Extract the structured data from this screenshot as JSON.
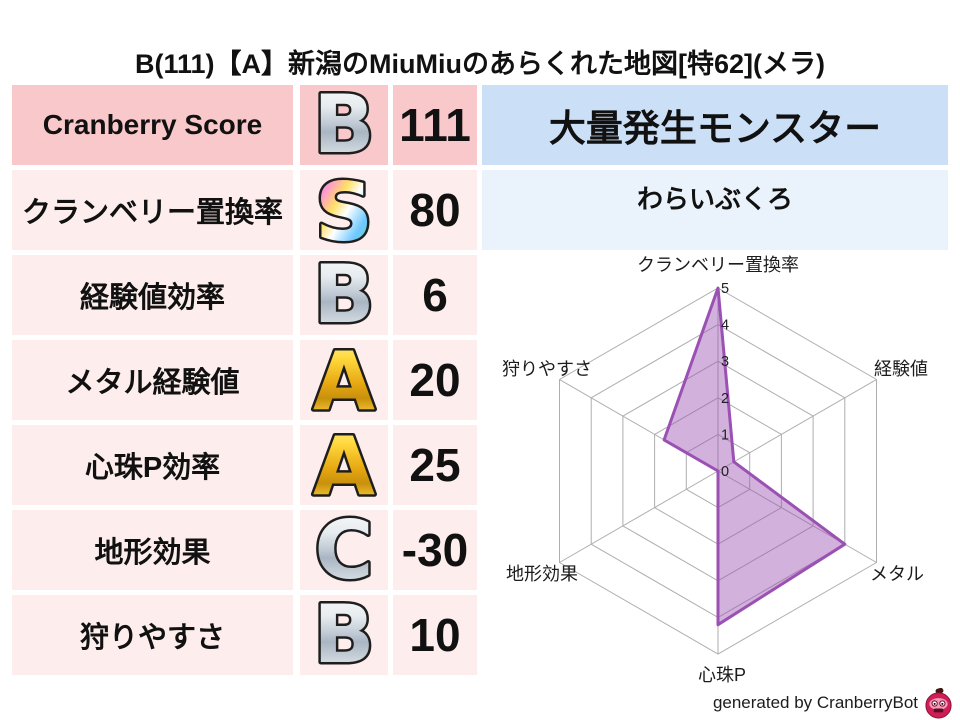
{
  "title": "B(111)【A】新潟のMiuMiuのあらくれた地図[特62](メラ)",
  "colors": {
    "row_highlight": "#f9c8ca",
    "row_normal": "#fdeeed",
    "panel_header": "#cbdff7",
    "panel_body": "#eaf3fb",
    "radar_fill": "rgba(155,81,179,0.45)",
    "radar_stroke": "#9b51b3",
    "grid": "#aeaeae",
    "rank_silver": "silver-gradient",
    "rank_gold": "gold-gradient",
    "rank_rainbow": "rainbow-gradient"
  },
  "table": {
    "rows": [
      {
        "label": "Cranberry Score",
        "rank": "B",
        "rank_style": "silver",
        "value": "111"
      },
      {
        "label": "クランベリー置換率",
        "rank": "S",
        "rank_style": "rainbow",
        "value": "80"
      },
      {
        "label": "経験値効率",
        "rank": "B",
        "rank_style": "silver",
        "value": "6"
      },
      {
        "label": "メタル経験値",
        "rank": "A",
        "rank_style": "gold",
        "value": "20"
      },
      {
        "label": "心珠P効率",
        "rank": "A",
        "rank_style": "gold",
        "value": "25"
      },
      {
        "label": "地形効果",
        "rank": "C",
        "rank_style": "silver",
        "value": "-30"
      },
      {
        "label": "狩りやすさ",
        "rank": "B",
        "rank_style": "silver",
        "value": "10"
      }
    ]
  },
  "monster_panel": {
    "header": "大量発生モンスター",
    "name": "わらいぶくろ"
  },
  "chart_data": {
    "type": "radar",
    "title": "",
    "axes": [
      {
        "label": "クランベリー置換率",
        "value": 5
      },
      {
        "label": "経験値",
        "value": 0.5
      },
      {
        "label": "メタル",
        "value": 4
      },
      {
        "label": "心珠P",
        "value": 4.2
      },
      {
        "label": "地形効果",
        "value": 0
      },
      {
        "label": "狩りやすさ",
        "value": 1.7
      }
    ],
    "ticks": [
      0,
      1,
      2,
      3,
      4,
      5
    ],
    "range": [
      0,
      5
    ],
    "grid": "hexagonal-rings-and-spokes",
    "legend": "none"
  },
  "footer": {
    "credit": "generated by CranberryBot",
    "icon": "cranberry-bot-icon"
  }
}
